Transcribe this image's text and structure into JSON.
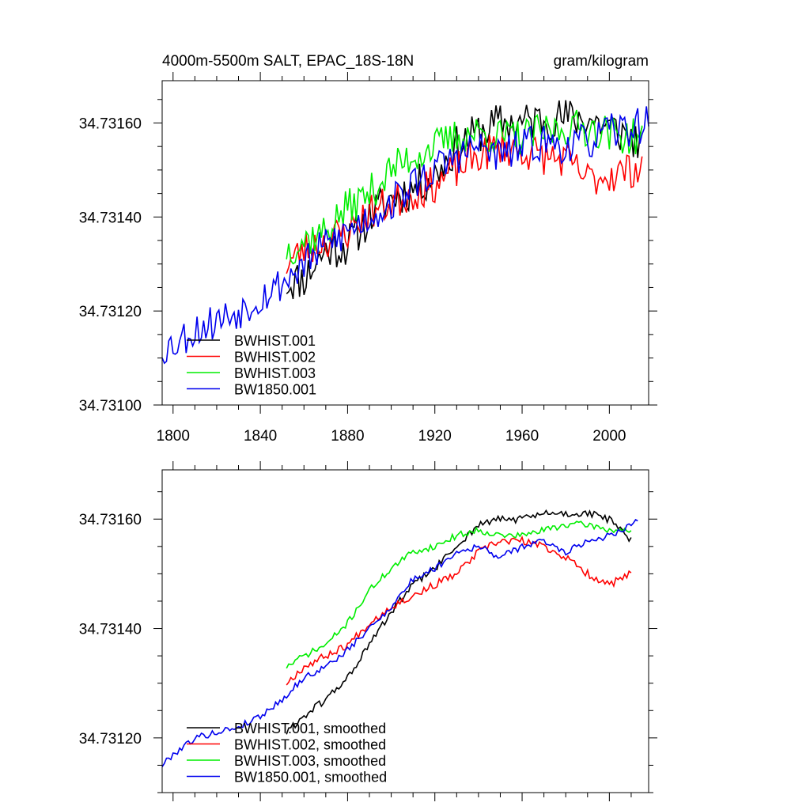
{
  "figure_title": "4000m-5500m SALT, EPAC_18S-18N",
  "units": "gram/kilogram",
  "chart_data": [
    {
      "type": "line",
      "title": "4000m-5500m SALT, EPAC_18S-18N",
      "units_label": "gram/kilogram",
      "xlabel": "",
      "ylabel": "",
      "xlim": [
        1795,
        2018
      ],
      "ylim": [
        34.731,
        34.73169
      ],
      "x_ticks": [
        1800,
        1840,
        1880,
        1920,
        1960,
        2000
      ],
      "x_tick_labels": [
        "1800",
        "1840",
        "1880",
        "1920",
        "1960",
        "2000"
      ],
      "y_ticks": [
        34.731,
        34.7312,
        34.7314,
        34.7316
      ],
      "y_tick_labels": [
        "34.73100",
        "34.73120",
        "34.73140",
        "34.73160"
      ],
      "legend_position": "bottom-left",
      "series": [
        {
          "name": "BWHIST.001",
          "color": "#000000",
          "seed": 11,
          "noise": 4.5e-05,
          "end_x": 2015,
          "anchors": [
            [
              1852,
              34.73126
            ],
            [
              1860,
              34.73127
            ],
            [
              1870,
              34.73133
            ],
            [
              1880,
              34.73134
            ],
            [
              1890,
              34.7314
            ],
            [
              1900,
              34.73144
            ],
            [
              1910,
              34.73146
            ],
            [
              1920,
              34.73149
            ],
            [
              1930,
              34.73155
            ],
            [
              1940,
              34.73158
            ],
            [
              1950,
              34.7316
            ],
            [
              1960,
              34.7316
            ],
            [
              1970,
              34.73161
            ],
            [
              1980,
              34.73161
            ],
            [
              1990,
              34.73161
            ],
            [
              2000,
              34.73159
            ],
            [
              2010,
              34.73157
            ],
            [
              2015,
              34.73155
            ]
          ]
        },
        {
          "name": "BWHIST.002",
          "color": "#ff0000",
          "seed": 23,
          "noise": 4e-05,
          "end_x": 2015,
          "anchors": [
            [
              1852,
              34.7313
            ],
            [
              1860,
              34.73133
            ],
            [
              1870,
              34.73135
            ],
            [
              1880,
              34.73137
            ],
            [
              1890,
              34.73141
            ],
            [
              1900,
              34.73143
            ],
            [
              1910,
              34.73145
            ],
            [
              1920,
              34.73147
            ],
            [
              1930,
              34.7315
            ],
            [
              1940,
              34.73153
            ],
            [
              1950,
              34.73155
            ],
            [
              1960,
              34.73154
            ],
            [
              1970,
              34.73153
            ],
            [
              1980,
              34.73152
            ],
            [
              1990,
              34.73148
            ],
            [
              2000,
              34.73149
            ],
            [
              2010,
              34.7315
            ],
            [
              2015,
              34.73151
            ]
          ]
        },
        {
          "name": "BWHIST.003",
          "color": "#00ee00",
          "seed": 37,
          "noise": 4e-05,
          "end_x": 2015,
          "anchors": [
            [
              1852,
              34.73133
            ],
            [
              1860,
              34.73135
            ],
            [
              1870,
              34.73137
            ],
            [
              1880,
              34.73142
            ],
            [
              1890,
              34.73145
            ],
            [
              1900,
              34.7315
            ],
            [
              1910,
              34.73153
            ],
            [
              1920,
              34.73155
            ],
            [
              1930,
              34.73157
            ],
            [
              1940,
              34.73158
            ],
            [
              1950,
              34.73157
            ],
            [
              1960,
              34.73157
            ],
            [
              1970,
              34.73158
            ],
            [
              1980,
              34.73159
            ],
            [
              1990,
              34.73159
            ],
            [
              2000,
              34.73158
            ],
            [
              2010,
              34.73157
            ],
            [
              2015,
              34.73157
            ]
          ]
        },
        {
          "name": "BW1850.001",
          "color": "#0000ee",
          "seed": 53,
          "noise": 4e-05,
          "end_x": 2018,
          "anchors": [
            [
              1795,
              34.73112
            ],
            [
              1800,
              34.73113
            ],
            [
              1810,
              34.73116
            ],
            [
              1820,
              34.73118
            ],
            [
              1830,
              34.7312
            ],
            [
              1840,
              34.73123
            ],
            [
              1850,
              34.73126
            ],
            [
              1860,
              34.7313
            ],
            [
              1870,
              34.73134
            ],
            [
              1880,
              34.73137
            ],
            [
              1890,
              34.7314
            ],
            [
              1900,
              34.73143
            ],
            [
              1910,
              34.73147
            ],
            [
              1920,
              34.7315
            ],
            [
              1930,
              34.73153
            ],
            [
              1940,
              34.73155
            ],
            [
              1950,
              34.73153
            ],
            [
              1960,
              34.73155
            ],
            [
              1970,
              34.73156
            ],
            [
              1980,
              34.73155
            ],
            [
              1990,
              34.73156
            ],
            [
              2000,
              34.73158
            ],
            [
              2010,
              34.73159
            ],
            [
              2018,
              34.7316
            ]
          ]
        }
      ]
    },
    {
      "type": "line",
      "title": "",
      "xlabel": "",
      "ylabel": "",
      "xlim": [
        1795,
        2018
      ],
      "ylim": [
        34.7311,
        34.73169
      ],
      "x_ticks": [
        1800,
        1840,
        1880,
        1920,
        1960,
        2000
      ],
      "x_tick_labels": [],
      "y_ticks": [
        34.7312,
        34.7314,
        34.7316
      ],
      "y_tick_labels": [
        "34.73120",
        "34.73140",
        "34.73160"
      ],
      "legend_position": "bottom-left",
      "series": [
        {
          "name": "BWHIST.001, smoothed",
          "color": "#000000",
          "seed": 61,
          "noise": 7e-06,
          "end_x": 2010,
          "anchors": [
            [
              1852,
              34.73121
            ],
            [
              1860,
              34.73124
            ],
            [
              1870,
              34.73127
            ],
            [
              1880,
              34.73131
            ],
            [
              1890,
              34.73137
            ],
            [
              1900,
              34.73143
            ],
            [
              1910,
              34.73148
            ],
            [
              1920,
              34.73151
            ],
            [
              1930,
              34.73155
            ],
            [
              1940,
              34.73159
            ],
            [
              1950,
              34.7316
            ],
            [
              1960,
              34.7316
            ],
            [
              1970,
              34.73161
            ],
            [
              1980,
              34.73161
            ],
            [
              1990,
              34.73161
            ],
            [
              2000,
              34.7316
            ],
            [
              2005,
              34.73158
            ],
            [
              2010,
              34.73156
            ]
          ]
        },
        {
          "name": "BWHIST.002, smoothed",
          "color": "#ff0000",
          "seed": 67,
          "noise": 7e-06,
          "end_x": 2010,
          "anchors": [
            [
              1852,
              34.7313
            ],
            [
              1860,
              34.73133
            ],
            [
              1870,
              34.73135
            ],
            [
              1880,
              34.73137
            ],
            [
              1890,
              34.73141
            ],
            [
              1900,
              34.73144
            ],
            [
              1910,
              34.73146
            ],
            [
              1920,
              34.73148
            ],
            [
              1930,
              34.7315
            ],
            [
              1940,
              34.73154
            ],
            [
              1950,
              34.73156
            ],
            [
              1960,
              34.73156
            ],
            [
              1970,
              34.73155
            ],
            [
              1980,
              34.73153
            ],
            [
              1990,
              34.7315
            ],
            [
              2000,
              34.73148
            ],
            [
              2005,
              34.73149
            ],
            [
              2010,
              34.7315
            ]
          ]
        },
        {
          "name": "BWHIST.003, smoothed",
          "color": "#00ee00",
          "seed": 71,
          "noise": 6e-06,
          "end_x": 2010,
          "anchors": [
            [
              1852,
              34.73133
            ],
            [
              1860,
              34.73135
            ],
            [
              1870,
              34.73137
            ],
            [
              1880,
              34.73141
            ],
            [
              1890,
              34.73147
            ],
            [
              1900,
              34.73151
            ],
            [
              1910,
              34.73154
            ],
            [
              1920,
              34.73155
            ],
            [
              1930,
              34.73157
            ],
            [
              1940,
              34.73158
            ],
            [
              1950,
              34.73157
            ],
            [
              1960,
              34.73157
            ],
            [
              1970,
              34.73158
            ],
            [
              1980,
              34.73159
            ],
            [
              1990,
              34.73159
            ],
            [
              2000,
              34.73158
            ],
            [
              2010,
              34.73158
            ]
          ]
        },
        {
          "name": "BW1850.001, smoothed",
          "color": "#0000ee",
          "seed": 79,
          "noise": 6e-06,
          "end_x": 2013,
          "anchors": [
            [
              1795,
              34.73115
            ],
            [
              1800,
              34.73117
            ],
            [
              1810,
              34.7312
            ],
            [
              1820,
              34.73121
            ],
            [
              1830,
              34.73122
            ],
            [
              1840,
              34.73124
            ],
            [
              1850,
              34.73127
            ],
            [
              1860,
              34.73131
            ],
            [
              1870,
              34.73133
            ],
            [
              1880,
              34.73136
            ],
            [
              1890,
              34.7314
            ],
            [
              1900,
              34.73144
            ],
            [
              1910,
              34.73149
            ],
            [
              1920,
              34.73151
            ],
            [
              1930,
              34.73154
            ],
            [
              1940,
              34.73155
            ],
            [
              1950,
              34.73153
            ],
            [
              1960,
              34.73155
            ],
            [
              1970,
              34.73156
            ],
            [
              1980,
              34.73154
            ],
            [
              1990,
              34.73156
            ],
            [
              2000,
              34.73157
            ],
            [
              2010,
              34.73159
            ],
            [
              2013,
              34.7316
            ]
          ]
        }
      ]
    }
  ]
}
